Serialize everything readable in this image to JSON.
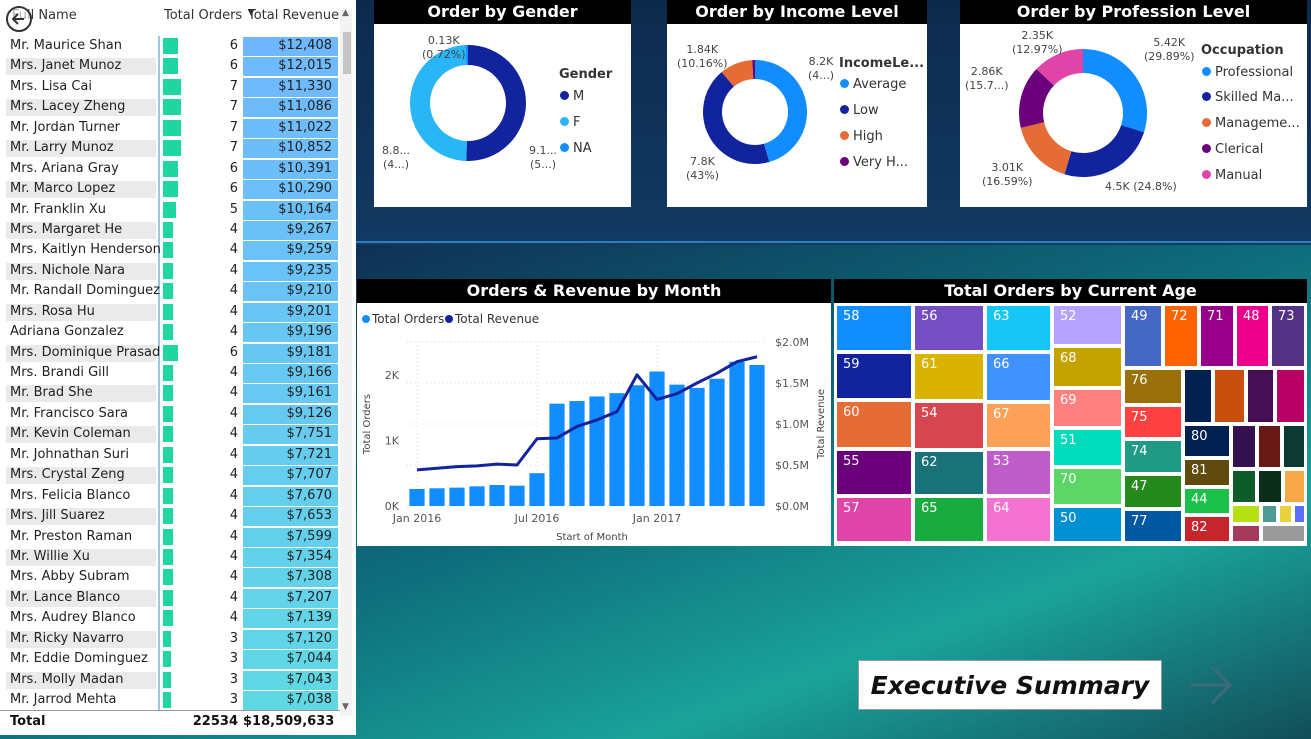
{
  "table": {
    "columns": [
      "Full Name",
      "Total Orders",
      "Total Revenue"
    ],
    "rows": [
      {
        "name": "Mr. Maurice Shan",
        "orders": 6,
        "revenue": "$12,408"
      },
      {
        "name": "Mrs. Janet Munoz",
        "orders": 6,
        "revenue": "$12,015"
      },
      {
        "name": "Mrs. Lisa Cai",
        "orders": 7,
        "revenue": "$11,330"
      },
      {
        "name": "Mrs. Lacey Zheng",
        "orders": 7,
        "revenue": "$11,086"
      },
      {
        "name": "Mr. Jordan Turner",
        "orders": 7,
        "revenue": "$11,022"
      },
      {
        "name": "Mr. Larry Munoz",
        "orders": 7,
        "revenue": "$10,852"
      },
      {
        "name": "Mrs. Ariana Gray",
        "orders": 6,
        "revenue": "$10,391"
      },
      {
        "name": "Mr. Marco Lopez",
        "orders": 6,
        "revenue": "$10,290"
      },
      {
        "name": "Mr. Franklin Xu",
        "orders": 5,
        "revenue": "$10,164"
      },
      {
        "name": "Mrs. Margaret He",
        "orders": 4,
        "revenue": "$9,267"
      },
      {
        "name": "Mrs. Kaitlyn Henderson",
        "orders": 4,
        "revenue": "$9,259"
      },
      {
        "name": "Mrs. Nichole Nara",
        "orders": 4,
        "revenue": "$9,235"
      },
      {
        "name": "Mr. Randall Dominguez",
        "orders": 4,
        "revenue": "$9,210"
      },
      {
        "name": "Mrs. Rosa Hu",
        "orders": 4,
        "revenue": "$9,201"
      },
      {
        "name": "Adriana Gonzalez",
        "orders": 4,
        "revenue": "$9,196"
      },
      {
        "name": "Mrs. Dominique Prasad",
        "orders": 6,
        "revenue": "$9,181"
      },
      {
        "name": "Mrs. Brandi Gill",
        "orders": 4,
        "revenue": "$9,166"
      },
      {
        "name": "Mr. Brad She",
        "orders": 4,
        "revenue": "$9,161"
      },
      {
        "name": "Mr. Francisco Sara",
        "orders": 4,
        "revenue": "$9,126"
      },
      {
        "name": "Mr. Kevin Coleman",
        "orders": 4,
        "revenue": "$7,751"
      },
      {
        "name": "Mr. Johnathan Suri",
        "orders": 4,
        "revenue": "$7,721"
      },
      {
        "name": "Mrs. Crystal Zeng",
        "orders": 4,
        "revenue": "$7,707"
      },
      {
        "name": "Mrs. Felicia Blanco",
        "orders": 4,
        "revenue": "$7,670"
      },
      {
        "name": "Mrs. Jill Suarez",
        "orders": 4,
        "revenue": "$7,653"
      },
      {
        "name": "Mr. Preston Raman",
        "orders": 4,
        "revenue": "$7,599"
      },
      {
        "name": "Mr. Willie Xu",
        "orders": 4,
        "revenue": "$7,354"
      },
      {
        "name": "Mrs. Abby Subram",
        "orders": 4,
        "revenue": "$7,308"
      },
      {
        "name": "Mr. Lance Blanco",
        "orders": 4,
        "revenue": "$7,207"
      },
      {
        "name": "Mrs. Audrey Blanco",
        "orders": 4,
        "revenue": "$7,139"
      },
      {
        "name": "Mr. Ricky Navarro",
        "orders": 3,
        "revenue": "$7,120"
      },
      {
        "name": "Mr. Eddie Dominguez",
        "orders": 3,
        "revenue": "$7,044"
      },
      {
        "name": "Mrs. Molly Madan",
        "orders": 3,
        "revenue": "$7,043"
      },
      {
        "name": "Mr. Jarrod Mehta",
        "orders": 3,
        "revenue": "$7,038"
      }
    ],
    "total": {
      "label": "Total",
      "orders": "22534",
      "revenue": "$18,509,633"
    }
  },
  "colors": {
    "bar": "#1fd6a1",
    "revenue_light": "#5fd8e4",
    "revenue_dark": "#4da6ff"
  },
  "chart_data": [
    {
      "id": "gender",
      "type": "pie",
      "title": "Order by Gender",
      "legend_title": "Gender",
      "slices": [
        {
          "name": "M",
          "value": 9100,
          "label": "9.1...",
          "label2": "(5...)",
          "color": "#12239e"
        },
        {
          "name": "F",
          "value": 8800,
          "label": "8.8...",
          "label2": "(4...)",
          "color": "#29b6f6"
        },
        {
          "name": "NA",
          "value": 130,
          "label": "0.13K",
          "label2": "(0.72%)",
          "color": "#118dff"
        }
      ]
    },
    {
      "id": "income",
      "type": "pie",
      "title": "Order by Income Level",
      "legend_title": "IncomeLe...",
      "slices": [
        {
          "name": "Average",
          "value": 8200,
          "label": "8.2K",
          "label2": "(4...)",
          "color": "#118dff"
        },
        {
          "name": "Low",
          "value": 7800,
          "label": "7.8K",
          "label2": "(43%)",
          "color": "#12239e"
        },
        {
          "name": "High",
          "value": 1840,
          "label": "1.84K",
          "label2": "(10.16%)",
          "color": "#e66c37"
        },
        {
          "name": "Very H...",
          "value": 150,
          "label": "",
          "label2": "",
          "color": "#6b007b"
        }
      ]
    },
    {
      "id": "profession",
      "type": "pie",
      "title": "Order by Profession Level",
      "legend_title": "Occupation",
      "slices": [
        {
          "name": "Professional",
          "value": 5420,
          "label": "5.42K",
          "label2": "(29.89%)",
          "color": "#118dff"
        },
        {
          "name": "Skilled Ma...",
          "value": 4500,
          "label": "4.5K (24.8%)",
          "label2": "",
          "color": "#12239e"
        },
        {
          "name": "Manageme...",
          "value": 3010,
          "label": "3.01K",
          "label2": "(16.59%)",
          "color": "#e66c37"
        },
        {
          "name": "Clerical",
          "value": 2860,
          "label": "2.86K",
          "label2": "(15.7...)",
          "color": "#6b007b"
        },
        {
          "name": "Manual",
          "value": 2350,
          "label": "2.35K",
          "label2": "(12.97%)",
          "color": "#e044a7"
        }
      ]
    },
    {
      "id": "monthly",
      "type": "bar",
      "title": "Orders & Revenue by Month",
      "xlabel": "Start of Month",
      "ylabel": "Total Orders",
      "ylabel2": "Total Revenue",
      "legend": [
        "Total Orders",
        "Total Revenue"
      ],
      "x_ticks": [
        "Jan 2016",
        "Jul 2016",
        "Jan 2017"
      ],
      "y_ticks": [
        "0K",
        "1K",
        "2K"
      ],
      "y2_ticks": [
        "$0.0M",
        "$0.5M",
        "$1.0M",
        "$1.5M",
        "$2.0M"
      ],
      "ylim": [
        0,
        2500
      ],
      "y2lim": [
        0,
        2000000
      ],
      "categories": [
        "2016-01",
        "2016-02",
        "2016-03",
        "2016-04",
        "2016-05",
        "2016-06",
        "2016-07",
        "2016-08",
        "2016-09",
        "2016-10",
        "2016-11",
        "2016-12",
        "2017-01",
        "2017-02",
        "2017-03",
        "2017-04",
        "2017-05",
        "2017-06"
      ],
      "series": [
        {
          "name": "Total Orders",
          "type": "bar",
          "color": "#118dff",
          "values": [
            260,
            270,
            280,
            300,
            320,
            310,
            500,
            1560,
            1600,
            1670,
            1720,
            1840,
            2050,
            1850,
            1800,
            1940,
            2200,
            2150
          ]
        },
        {
          "name": "Total Revenue",
          "type": "line",
          "color": "#12239e",
          "values": [
            440000,
            460000,
            480000,
            490000,
            510000,
            500000,
            820000,
            830000,
            970000,
            1050000,
            1150000,
            1600000,
            1300000,
            1370000,
            1500000,
            1620000,
            1760000,
            1820000
          ]
        }
      ]
    },
    {
      "id": "age_treemap",
      "type": "treemap",
      "title": "Total Orders by Current Age",
      "cells": [
        {
          "label": "58",
          "color": "#118dff"
        },
        {
          "label": "59",
          "color": "#12239e"
        },
        {
          "label": "60",
          "color": "#e66c37"
        },
        {
          "label": "55",
          "color": "#6b007b"
        },
        {
          "label": "57",
          "color": "#e044a7"
        },
        {
          "label": "56",
          "color": "#744ec2"
        },
        {
          "label": "61",
          "color": "#d9b300"
        },
        {
          "label": "54",
          "color": "#d64550"
        },
        {
          "label": "62",
          "color": "#197278"
        },
        {
          "label": "65",
          "color": "#1aab40"
        },
        {
          "label": "63",
          "color": "#15c6f4"
        },
        {
          "label": "66",
          "color": "#4092ff"
        },
        {
          "label": "67",
          "color": "#ffa058"
        },
        {
          "label": "53",
          "color": "#be5dc9"
        },
        {
          "label": "64",
          "color": "#f472d0"
        },
        {
          "label": "52",
          "color": "#b5a1ff"
        },
        {
          "label": "68",
          "color": "#c4a200"
        },
        {
          "label": "69",
          "color": "#ff8080"
        },
        {
          "label": "51",
          "color": "#00dbbc"
        },
        {
          "label": "70",
          "color": "#5bd667"
        },
        {
          "label": "50",
          "color": "#0091d5"
        },
        {
          "label": "49",
          "color": "#4668c5"
        },
        {
          "label": "72",
          "color": "#ff6300"
        },
        {
          "label": "71",
          "color": "#99008a"
        },
        {
          "label": "48",
          "color": "#ec008c"
        },
        {
          "label": "73",
          "color": "#533285"
        },
        {
          "label": "76",
          "color": "#99700a"
        },
        {
          "label": "75",
          "color": "#ff4141"
        },
        {
          "label": "74",
          "color": "#1f9a85"
        },
        {
          "label": "47",
          "color": "#25891c"
        },
        {
          "label": "77",
          "color": "#0057a2"
        },
        {
          "label": "80",
          "color": "#002050"
        },
        {
          "label": "81",
          "color": "#604b0f"
        },
        {
          "label": "44",
          "color": "#1bc049"
        },
        {
          "label": "82",
          "color": "#c7252c"
        }
      ],
      "small_cells": [
        "#002050",
        "#c94f0f",
        "#450f54",
        "#b60064",
        "#34124f",
        "#6a1a15",
        "#0c3a32",
        "#0e5b2c",
        "#0b2e1b",
        "#f6a847",
        "#b4e014",
        "#4e9b94",
        "#e8d33e",
        "#5c6ffb",
        "#a43a5c",
        "#9a9a9a"
      ]
    }
  ],
  "exec_button": {
    "label": "Executive Summary"
  }
}
